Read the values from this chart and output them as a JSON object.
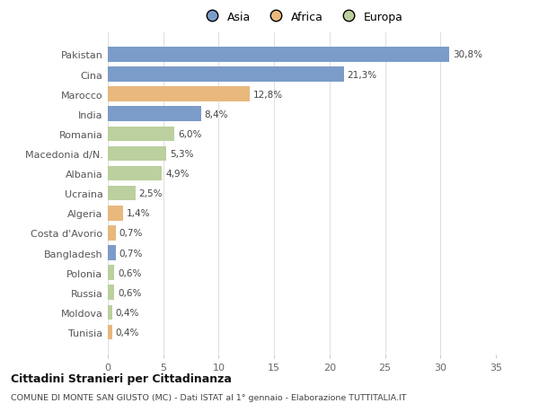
{
  "categories": [
    "Pakistan",
    "Cina",
    "Marocco",
    "India",
    "Romania",
    "Macedonia d/N.",
    "Albania",
    "Ucraina",
    "Algeria",
    "Costa d'Avorio",
    "Bangladesh",
    "Polonia",
    "Russia",
    "Moldova",
    "Tunisia"
  ],
  "values": [
    30.8,
    21.3,
    12.8,
    8.4,
    6.0,
    5.3,
    4.9,
    2.5,
    1.4,
    0.7,
    0.7,
    0.6,
    0.6,
    0.4,
    0.4
  ],
  "labels": [
    "30,8%",
    "21,3%",
    "12,8%",
    "8,4%",
    "6,0%",
    "5,3%",
    "4,9%",
    "2,5%",
    "1,4%",
    "0,7%",
    "0,7%",
    "0,6%",
    "0,6%",
    "0,4%",
    "0,4%"
  ],
  "continents": [
    "Asia",
    "Asia",
    "Africa",
    "Asia",
    "Europa",
    "Europa",
    "Europa",
    "Europa",
    "Africa",
    "Africa",
    "Asia",
    "Europa",
    "Europa",
    "Europa",
    "Africa"
  ],
  "colors": {
    "Asia": "#7b9cc9",
    "Africa": "#e8b87c",
    "Europa": "#bbd09e"
  },
  "title1": "Cittadini Stranieri per Cittadinanza",
  "title2": "COMUNE DI MONTE SAN GIUSTO (MC) - Dati ISTAT al 1° gennaio - Elaborazione TUTTITALIA.IT",
  "xlim": [
    0,
    35
  ],
  "xticks": [
    0,
    5,
    10,
    15,
    20,
    25,
    30,
    35
  ],
  "background_color": "#ffffff",
  "bar_height": 0.75,
  "grid_color": "#e0e0e0"
}
